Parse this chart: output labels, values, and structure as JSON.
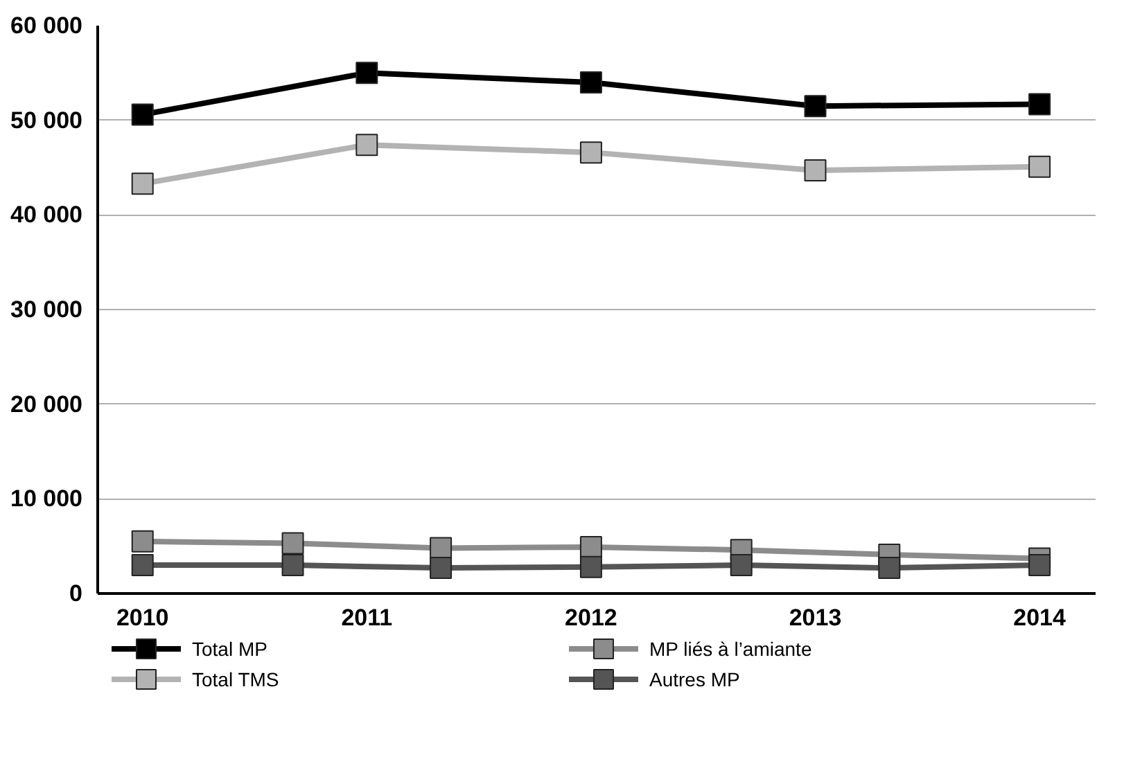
{
  "chart_data": {
    "type": "line",
    "xlim": [
      2009.8,
      2014.25
    ],
    "xticks": [
      2010,
      2011,
      2012,
      2013,
      2014
    ],
    "ylim": [
      0,
      60000
    ],
    "yticks": [
      {
        "value": 0,
        "label": "0"
      },
      {
        "value": 10000,
        "label": "10 000"
      },
      {
        "value": 20000,
        "label": "20 000"
      },
      {
        "value": 30000,
        "label": "30 000"
      },
      {
        "value": 40000,
        "label": "40 000"
      },
      {
        "value": 50000,
        "label": "50 000"
      },
      {
        "value": 60000,
        "label": "60 000"
      }
    ],
    "grid": "y",
    "legend": "bottom",
    "marker": "square",
    "line_style": "solid",
    "series": [
      {
        "name": "Total MP",
        "color": "#000000",
        "x": [
          2010,
          2011,
          2012,
          2013,
          2014
        ],
        "values": [
          50600,
          55000,
          54000,
          51500,
          51700
        ]
      },
      {
        "name": "Total TMS",
        "color": "#b3b3b3",
        "x": [
          2010,
          2011,
          2012,
          2013,
          2014
        ],
        "values": [
          43300,
          47400,
          46600,
          44700,
          45100
        ]
      },
      {
        "name": "MP liés à l’amiante",
        "color": "#8c8c8c",
        "x": [
          2010,
          2010.67,
          2011.33,
          2012,
          2012.67,
          2013.33,
          2014
        ],
        "values": [
          5500,
          5300,
          4800,
          4900,
          4600,
          4100,
          3700
        ]
      },
      {
        "name": "Autres MP",
        "color": "#555555",
        "x": [
          2010,
          2010.67,
          2011.33,
          2012,
          2012.67,
          2013.33,
          2014
        ],
        "values": [
          3000,
          3000,
          2700,
          2800,
          3000,
          2700,
          3000
        ]
      }
    ]
  }
}
